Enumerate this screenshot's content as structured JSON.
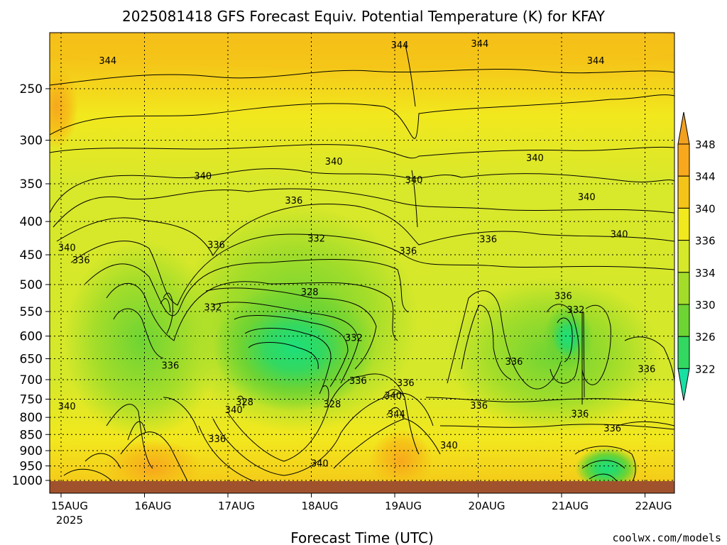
{
  "chart_data": {
    "type": "heatmap",
    "title": "2025081418 GFS Forecast Equiv. Potential Temperature (K) for KFAY",
    "xlabel": "Forecast Time (UTC)",
    "ylabel": "",
    "x_ticks": [
      "15AUG",
      "16AUG",
      "17AUG",
      "18AUG",
      "19AUG",
      "20AUG",
      "21AUG",
      "22AUG"
    ],
    "x_tick_sub": "2025",
    "y_ticks": [
      250,
      300,
      350,
      400,
      450,
      500,
      550,
      600,
      650,
      700,
      750,
      800,
      850,
      900,
      950,
      1000
    ],
    "colorbar": {
      "levels": [
        348,
        344,
        340,
        336,
        334,
        330,
        326,
        322
      ],
      "colors": [
        "#f7a81c",
        "#f5c418",
        "#f2e81e",
        "#d5e82a",
        "#a3dd2a",
        "#6ed433",
        "#33d860",
        "#1ce898"
      ],
      "top_color": "#f1a020",
      "bottom_color": "#19dfa2"
    },
    "contour_labels": [
      {
        "text": "344",
        "day": 0.56,
        "p": 226
      },
      {
        "text": "344",
        "day": 4.06,
        "p": 214
      },
      {
        "text": "344",
        "day": 5.02,
        "p": 213
      },
      {
        "text": "344",
        "day": 6.41,
        "p": 226
      },
      {
        "text": "340",
        "day": 3.27,
        "p": 323
      },
      {
        "text": "340",
        "day": 1.7,
        "p": 340
      },
      {
        "text": "340",
        "day": 4.23,
        "p": 345
      },
      {
        "text": "340",
        "day": 5.68,
        "p": 319
      },
      {
        "text": "340",
        "day": 6.3,
        "p": 366
      },
      {
        "text": "340",
        "day": 6.69,
        "p": 418
      },
      {
        "text": "340",
        "day": 0.07,
        "p": 438
      },
      {
        "text": "336",
        "day": 2.79,
        "p": 371
      },
      {
        "text": "336",
        "day": 1.86,
        "p": 434
      },
      {
        "text": "336",
        "day": 0.24,
        "p": 458
      },
      {
        "text": "336",
        "day": 4.16,
        "p": 443
      },
      {
        "text": "336",
        "day": 5.12,
        "p": 425
      },
      {
        "text": "332",
        "day": 3.06,
        "p": 424
      },
      {
        "text": "328",
        "day": 2.98,
        "p": 513
      },
      {
        "text": "332",
        "day": 1.82,
        "p": 541
      },
      {
        "text": "336",
        "day": 6.02,
        "p": 520
      },
      {
        "text": "332",
        "day": 6.17,
        "p": 546
      },
      {
        "text": "332",
        "day": 3.51,
        "p": 603
      },
      {
        "text": "336",
        "day": 5.43,
        "p": 656
      },
      {
        "text": "336",
        "day": 1.31,
        "p": 665
      },
      {
        "text": "336",
        "day": 7.02,
        "p": 673
      },
      {
        "text": "336",
        "day": 3.56,
        "p": 702
      },
      {
        "text": "336",
        "day": 4.13,
        "p": 707
      },
      {
        "text": "340",
        "day": 3.98,
        "p": 740
      },
      {
        "text": "328",
        "day": 2.2,
        "p": 757
      },
      {
        "text": "328",
        "day": 3.25,
        "p": 762
      },
      {
        "text": "340",
        "day": 0.07,
        "p": 768
      },
      {
        "text": "340",
        "day": 2.07,
        "p": 778
      },
      {
        "text": "336",
        "day": 5.01,
        "p": 766
      },
      {
        "text": "344",
        "day": 4.02,
        "p": 790
      },
      {
        "text": "336",
        "day": 6.22,
        "p": 789
      },
      {
        "text": "336",
        "day": 1.87,
        "p": 862
      },
      {
        "text": "336",
        "day": 6.61,
        "p": 830
      },
      {
        "text": "340",
        "day": 4.65,
        "p": 882
      },
      {
        "text": "340",
        "day": 3.1,
        "p": 940
      }
    ],
    "credit": "coolwx.com/models"
  }
}
